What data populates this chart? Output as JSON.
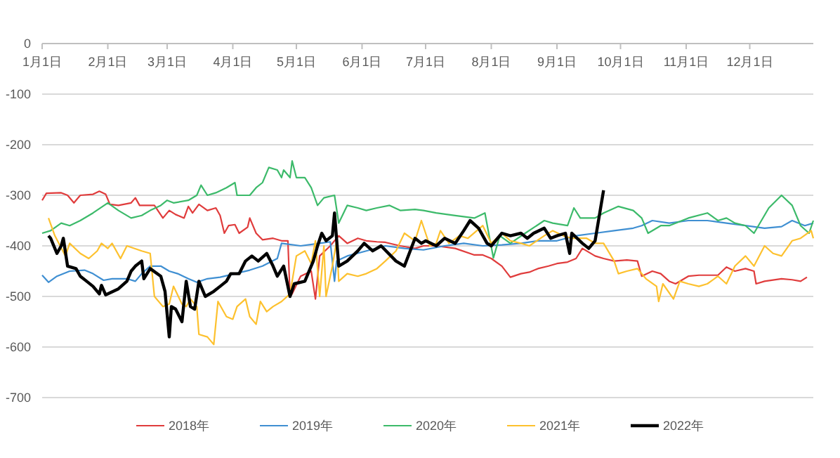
{
  "chart_data": {
    "type": "line",
    "xlim": [
      "--01-01",
      "--12-31"
    ],
    "xticks": [
      {
        "value": "--01-01",
        "label": "1月1日"
      },
      {
        "value": "--02-01",
        "label": "2月1日"
      },
      {
        "value": "--03-01",
        "label": "3月1日"
      },
      {
        "value": "--04-01",
        "label": "4月1日"
      },
      {
        "value": "--05-01",
        "label": "5月1日"
      },
      {
        "value": "--06-01",
        "label": "6月1日"
      },
      {
        "value": "--07-01",
        "label": "7月1日"
      },
      {
        "value": "--08-01",
        "label": "8月1日"
      },
      {
        "value": "--09-01",
        "label": "9月1日"
      },
      {
        "value": "--10-01",
        "label": "10月1日"
      },
      {
        "value": "--11-01",
        "label": "11月1日"
      },
      {
        "value": "--12-01",
        "label": "12月1日"
      }
    ],
    "ylim": [
      -700,
      0
    ],
    "yticks": [
      0,
      -100,
      -200,
      -300,
      -400,
      -500,
      -600,
      -700
    ],
    "grid": "y",
    "legend": "bottom",
    "marker": "none",
    "line_style": "solid",
    "series": [
      {
        "name": "2018年",
        "color": "#e03c3c",
        "x": [
          "--01-01",
          "--01-03",
          "--01-10",
          "--01-13",
          "--01-16",
          "--01-19",
          "--01-25",
          "--01-28",
          "--01-31",
          "--02-02",
          "--02-06",
          "--02-12",
          "--02-14",
          "--02-16",
          "--02-23",
          "--02-27",
          "--03-02",
          "--03-05",
          "--03-09",
          "--03-11",
          "--03-13",
          "--03-16",
          "--03-20",
          "--03-24",
          "--03-26",
          "--03-28",
          "--03-30",
          "--04-02",
          "--04-04",
          "--04-08",
          "--04-09",
          "--04-12",
          "--04-15",
          "--04-20",
          "--04-24",
          "--04-27",
          "--04-28",
          "--04-29",
          "--05-03",
          "--05-08",
          "--05-10",
          "--05-12",
          "--05-17",
          "--05-21",
          "--05-25",
          "--05-30",
          "--06-03",
          "--06-08",
          "--06-12",
          "--06-19",
          "--06-26",
          "--06-30",
          "--07-06",
          "--07-15",
          "--07-24",
          "--07-28",
          "--08-01",
          "--08-06",
          "--08-10",
          "--08-15",
          "--08-19",
          "--08-23",
          "--08-28",
          "--09-01",
          "--09-06",
          "--09-10",
          "--09-13",
          "--09-19",
          "--09-23",
          "--09-28",
          "--10-04",
          "--10-09",
          "--10-11",
          "--10-16",
          "--10-20",
          "--10-24",
          "--10-27",
          "--11-02",
          "--11-07",
          "--11-16",
          "--11-20",
          "--11-24",
          "--11-29",
          "--12-03",
          "--12-04",
          "--12-08",
          "--12-16",
          "--12-21",
          "--12-25",
          "--12-28"
        ],
        "values": [
          -310,
          -296,
          -295,
          -300,
          -315,
          -300,
          -298,
          -292,
          -298,
          -318,
          -320,
          -315,
          -305,
          -320,
          -320,
          -345,
          -330,
          -338,
          -345,
          -322,
          -335,
          -318,
          -330,
          -325,
          -340,
          -375,
          -360,
          -358,
          -375,
          -363,
          -345,
          -375,
          -388,
          -385,
          -390,
          -390,
          -500,
          -495,
          -460,
          -450,
          -505,
          -420,
          -400,
          -380,
          -395,
          -385,
          -390,
          -392,
          -393,
          -400,
          -405,
          -400,
          -400,
          -405,
          -418,
          -418,
          -425,
          -440,
          -462,
          -455,
          -452,
          -445,
          -440,
          -435,
          -432,
          -425,
          -405,
          -420,
          -425,
          -430,
          -428,
          -430,
          -460,
          -450,
          -455,
          -470,
          -475,
          -460,
          -458,
          -458,
          -442,
          -450,
          -445,
          -450,
          -475,
          -470,
          -465,
          -467,
          -470,
          -462
        ]
      },
      {
        "name": "2019年",
        "color": "#3f8fd2",
        "x": [
          "--01-01",
          "--01-04",
          "--01-08",
          "--01-14",
          "--01-21",
          "--01-25",
          "--01-30",
          "--02-03",
          "--02-10",
          "--02-14",
          "--02-17",
          "--02-21",
          "--02-26",
          "--03-02",
          "--03-06",
          "--03-11",
          "--03-15",
          "--03-20",
          "--03-26",
          "--04-02",
          "--04-09",
          "--04-15",
          "--04-22",
          "--04-24",
          "--05-03",
          "--05-12",
          "--05-17",
          "--05-19",
          "--05-20",
          "--05-25",
          "--06-03",
          "--06-12",
          "--06-21",
          "--06-30",
          "--07-10",
          "--07-19",
          "--07-28",
          "--08-06",
          "--08-15",
          "--08-23",
          "--09-01",
          "--09-10",
          "--09-19",
          "--09-28",
          "--10-07",
          "--10-11",
          "--10-16",
          "--10-24",
          "--11-02",
          "--11-11",
          "--11-20",
          "--11-29",
          "--12-08",
          "--12-16",
          "--12-21",
          "--12-27",
          "--12-31"
        ],
        "values": [
          -458,
          -472,
          -460,
          -450,
          -448,
          -455,
          -468,
          -465,
          -465,
          -470,
          -455,
          -440,
          -440,
          -450,
          -455,
          -465,
          -472,
          -465,
          -462,
          -455,
          -448,
          -440,
          -425,
          -395,
          -400,
          -395,
          -392,
          -470,
          -430,
          -420,
          -410,
          -400,
          -405,
          -408,
          -400,
          -395,
          -400,
          -398,
          -395,
          -390,
          -390,
          -380,
          -375,
          -370,
          -365,
          -360,
          -350,
          -355,
          -350,
          -350,
          -355,
          -360,
          -365,
          -362,
          -350,
          -360,
          -355
        ]
      },
      {
        "name": "2020年",
        "color": "#3cba6a",
        "x": [
          "--01-01",
          "--01-05",
          "--01-10",
          "--01-14",
          "--01-19",
          "--01-25",
          "--02-01",
          "--02-06",
          "--02-12",
          "--02-17",
          "--02-21",
          "--02-26",
          "--03-01",
          "--03-04",
          "--03-11",
          "--03-15",
          "--03-17",
          "--03-20",
          "--03-24",
          "--03-29",
          "--04-02",
          "--04-03",
          "--04-09",
          "--04-12",
          "--04-15",
          "--04-18",
          "--04-22",
          "--04-24",
          "--04-25",
          "--04-28",
          "--04-29",
          "--05-01",
          "--05-05",
          "--05-08",
          "--05-11",
          "--05-14",
          "--05-19",
          "--05-21",
          "--05-25",
          "--05-30",
          "--06-03",
          "--06-08",
          "--06-14",
          "--06-19",
          "--06-26",
          "--06-30",
          "--07-06",
          "--07-15",
          "--07-24",
          "--07-29",
          "--07-31",
          "--08-02",
          "--08-05",
          "--08-10",
          "--08-17",
          "--08-26",
          "--08-30",
          "--09-06",
          "--09-09",
          "--09-12",
          "--09-19",
          "--09-23",
          "--09-30",
          "--10-07",
          "--10-11",
          "--10-14",
          "--10-20",
          "--10-24",
          "--11-02",
          "--11-11",
          "--11-16",
          "--11-20",
          "--11-24",
          "--11-29",
          "--12-03",
          "--12-10",
          "--12-16",
          "--12-21",
          "--12-25",
          "--12-29",
          "--12-31"
        ],
        "values": [
          -375,
          -370,
          -355,
          -360,
          -350,
          -335,
          -315,
          -330,
          -345,
          -340,
          -330,
          -320,
          -310,
          -315,
          -310,
          -300,
          -280,
          -300,
          -295,
          -285,
          -275,
          -300,
          -300,
          -285,
          -275,
          -245,
          -250,
          -265,
          -250,
          -265,
          -232,
          -265,
          -265,
          -285,
          -320,
          -305,
          -300,
          -355,
          -320,
          -325,
          -330,
          -325,
          -320,
          -330,
          -328,
          -330,
          -335,
          -340,
          -345,
          -335,
          -380,
          -424,
          -380,
          -395,
          -375,
          -350,
          -355,
          -360,
          -325,
          -345,
          -345,
          -335,
          -322,
          -330,
          -345,
          -375,
          -360,
          -360,
          -345,
          -335,
          -350,
          -345,
          -355,
          -360,
          -375,
          -325,
          -300,
          -320,
          -360,
          -375,
          -350
        ]
      },
      {
        "name": "2021年",
        "color": "#fdc12e",
        "x": [
          "--01-04",
          "--01-07",
          "--01-12",
          "--01-14",
          "--01-19",
          "--01-23",
          "--01-27",
          "--01-29",
          "--02-01",
          "--02-03",
          "--02-07",
          "--02-10",
          "--02-17",
          "--02-21",
          "--02-23",
          "--02-27",
          "--03-02",
          "--03-04",
          "--03-08",
          "--03-10",
          "--03-12",
          "--03-15",
          "--03-16",
          "--03-20",
          "--03-23",
          "--03-25",
          "--03-29",
          "--04-01",
          "--04-03",
          "--04-07",
          "--04-09",
          "--04-12",
          "--04-14",
          "--04-17",
          "--04-20",
          "--04-24",
          "--04-28",
          "--05-01",
          "--05-05",
          "--05-08",
          "--05-10",
          "--05-12",
          "--05-14",
          "--05-15",
          "--05-18",
          "--05-20",
          "--05-21",
          "--05-25",
          "--05-30",
          "--06-03",
          "--06-08",
          "--06-12",
          "--06-17",
          "--06-21",
          "--06-26",
          "--06-29",
          "--07-03",
          "--07-06",
          "--07-08",
          "--07-12",
          "--07-17",
          "--07-21",
          "--07-28",
          "--08-01",
          "--08-06",
          "--08-10",
          "--08-15",
          "--08-19",
          "--08-26",
          "--08-30",
          "--09-04",
          "--09-08",
          "--09-15",
          "--09-19",
          "--09-23",
          "--09-28",
          "--09-30",
          "--10-04",
          "--10-09",
          "--10-13",
          "--10-18",
          "--10-19",
          "--10-21",
          "--10-26",
          "--10-29",
          "--11-02",
          "--11-07",
          "--11-11",
          "--11-16",
          "--11-20",
          "--11-24",
          "--11-29",
          "--12-03",
          "--12-08",
          "--12-12",
          "--12-16",
          "--12-21",
          "--12-25",
          "--12-30",
          "--12-31"
        ],
        "values": [
          -345,
          -380,
          -420,
          -395,
          -415,
          -425,
          -410,
          -395,
          -405,
          -395,
          -425,
          -400,
          -410,
          -415,
          -500,
          -520,
          -515,
          -480,
          -515,
          -520,
          -505,
          -520,
          -575,
          -580,
          -595,
          -510,
          -540,
          -545,
          -520,
          -505,
          -540,
          -555,
          -510,
          -530,
          -520,
          -510,
          -495,
          -420,
          -410,
          -435,
          -390,
          -500,
          -400,
          -500,
          -440,
          -390,
          -470,
          -455,
          -460,
          -455,
          -445,
          -430,
          -410,
          -375,
          -390,
          -350,
          -400,
          -395,
          -370,
          -395,
          -380,
          -385,
          -360,
          -395,
          -375,
          -390,
          -395,
          -400,
          -380,
          -370,
          -380,
          -385,
          -385,
          -395,
          -395,
          -430,
          -455,
          -450,
          -445,
          -465,
          -480,
          -510,
          -475,
          -505,
          -470,
          -475,
          -480,
          -475,
          -460,
          -475,
          -440,
          -420,
          -440,
          -400,
          -415,
          -420,
          -390,
          -385,
          -370,
          -385
        ]
      },
      {
        "name": "2022年",
        "color": "#000000",
        "x": [
          "--01-04",
          "--01-05",
          "--01-08",
          "--01-10",
          "--01-11",
          "--01-13",
          "--01-17",
          "--01-19",
          "--01-22",
          "--01-25",
          "--01-28",
          "--01-29",
          "--01-31",
          "--02-06",
          "--02-10",
          "--02-12",
          "--02-14",
          "--02-17",
          "--02-18",
          "--02-21",
          "--02-26",
          "--02-28",
          "--03-02",
          "--03-03",
          "--03-05",
          "--03-08",
          "--03-10",
          "--03-12",
          "--03-14",
          "--03-16",
          "--03-19",
          "--03-23",
          "--03-26",
          "--03-29",
          "--03-31",
          "--04-04",
          "--04-07",
          "--04-10",
          "--04-13",
          "--04-17",
          "--04-20",
          "--04-22",
          "--04-25",
          "--04-28",
          "--04-30",
          "--05-05",
          "--05-09",
          "--05-11",
          "--05-13",
          "--05-15",
          "--05-18",
          "--05-19",
          "--05-21",
          "--05-25",
          "--05-30",
          "--06-02",
          "--06-06",
          "--06-10",
          "--06-17",
          "--06-21",
          "--06-26",
          "--06-29",
          "--07-01",
          "--07-06",
          "--07-10",
          "--07-15",
          "--07-19",
          "--07-22",
          "--07-26",
          "--07-30",
          "--08-01",
          "--08-06",
          "--08-10",
          "--08-15",
          "--08-18",
          "--08-21",
          "--08-26",
          "--08-29",
          "--09-01",
          "--09-05",
          "--09-07",
          "--09-08",
          "--09-13",
          "--09-16",
          "--09-19",
          "--09-21",
          "--09-23"
        ],
        "values": [
          -380,
          -385,
          -415,
          -400,
          -385,
          -440,
          -445,
          -460,
          -470,
          -480,
          -495,
          -478,
          -497,
          -485,
          -470,
          -450,
          -440,
          -430,
          -465,
          -445,
          -460,
          -490,
          -580,
          -520,
          -525,
          -550,
          -470,
          -520,
          -525,
          -470,
          -500,
          -490,
          -480,
          -470,
          -455,
          -455,
          -430,
          -420,
          -430,
          -415,
          -440,
          -460,
          -440,
          -500,
          -475,
          -470,
          -430,
          -400,
          -375,
          -390,
          -380,
          -335,
          -440,
          -430,
          -410,
          -395,
          -410,
          -400,
          -430,
          -440,
          -385,
          -395,
          -390,
          -400,
          -385,
          -395,
          -370,
          -350,
          -365,
          -395,
          -400,
          -375,
          -380,
          -375,
          -385,
          -375,
          -365,
          -385,
          -380,
          -375,
          -415,
          -375,
          -395,
          -405,
          -390,
          -340,
          -290
        ]
      }
    ]
  }
}
